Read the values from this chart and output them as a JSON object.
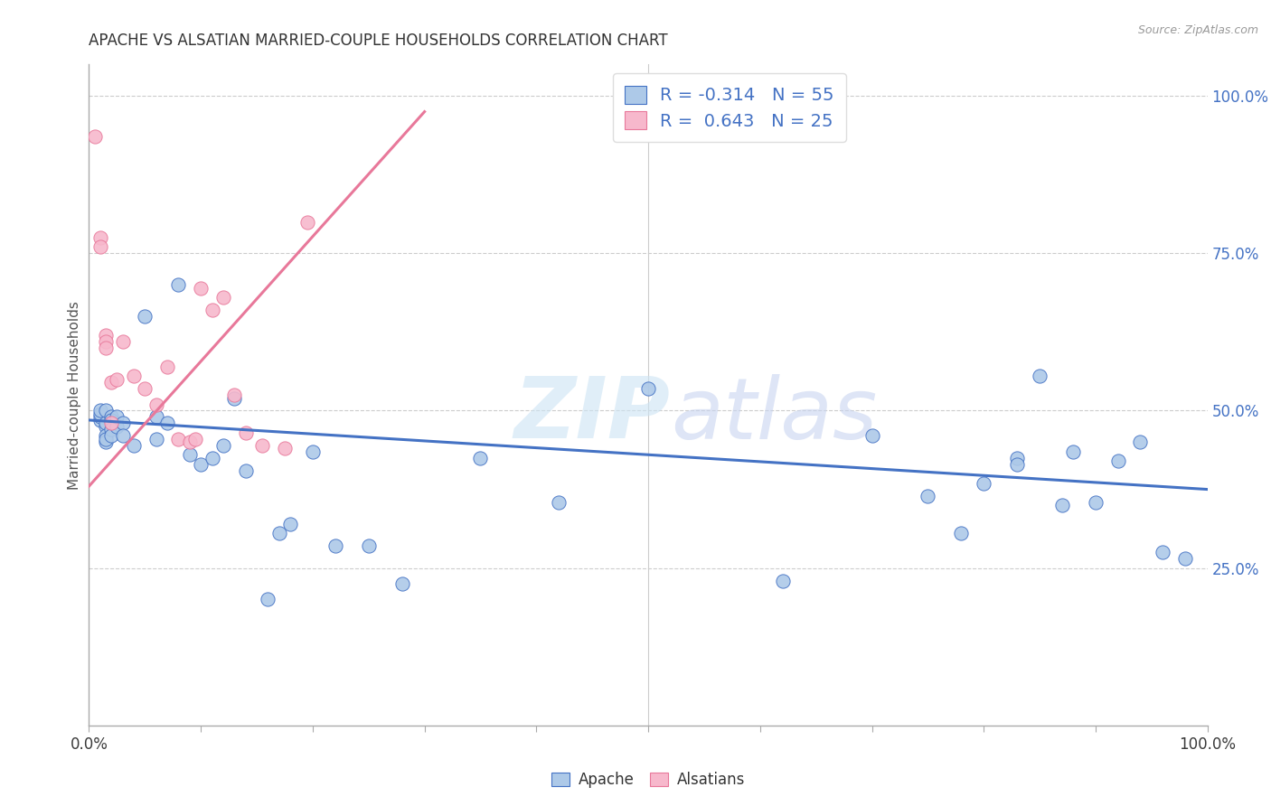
{
  "title": "APACHE VS ALSATIAN MARRIED-COUPLE HOUSEHOLDS CORRELATION CHART",
  "source": "Source: ZipAtlas.com",
  "ylabel": "Married-couple Households",
  "xlim": [
    0.0,
    1.0
  ],
  "ylim": [
    0.0,
    1.05
  ],
  "legend_apache_R": "-0.314",
  "legend_apache_N": "55",
  "legend_alsatian_R": "0.643",
  "legend_alsatian_N": "25",
  "apache_color": "#adc9e8",
  "alsatian_color": "#f7b8cc",
  "apache_line_color": "#4472c4",
  "alsatian_line_color": "#e8789a",
  "apache_points_x": [
    0.01,
    0.01,
    0.01,
    0.01,
    0.015,
    0.015,
    0.015,
    0.015,
    0.015,
    0.015,
    0.02,
    0.02,
    0.02,
    0.02,
    0.025,
    0.025,
    0.03,
    0.03,
    0.04,
    0.05,
    0.06,
    0.06,
    0.07,
    0.08,
    0.09,
    0.1,
    0.11,
    0.12,
    0.13,
    0.14,
    0.16,
    0.17,
    0.18,
    0.2,
    0.22,
    0.25,
    0.28,
    0.35,
    0.42,
    0.5,
    0.62,
    0.7,
    0.75,
    0.78,
    0.8,
    0.83,
    0.83,
    0.85,
    0.87,
    0.88,
    0.9,
    0.92,
    0.94,
    0.96,
    0.98
  ],
  "apache_points_y": [
    0.485,
    0.49,
    0.495,
    0.5,
    0.475,
    0.48,
    0.46,
    0.45,
    0.455,
    0.5,
    0.49,
    0.485,
    0.47,
    0.46,
    0.475,
    0.49,
    0.48,
    0.46,
    0.445,
    0.65,
    0.455,
    0.49,
    0.48,
    0.7,
    0.43,
    0.415,
    0.425,
    0.445,
    0.52,
    0.405,
    0.2,
    0.305,
    0.32,
    0.435,
    0.285,
    0.285,
    0.225,
    0.425,
    0.355,
    0.535,
    0.23,
    0.46,
    0.365,
    0.305,
    0.385,
    0.425,
    0.415,
    0.555,
    0.35,
    0.435,
    0.355,
    0.42,
    0.45,
    0.275,
    0.265
  ],
  "alsatian_points_x": [
    0.005,
    0.01,
    0.01,
    0.015,
    0.015,
    0.015,
    0.02,
    0.02,
    0.025,
    0.03,
    0.04,
    0.05,
    0.06,
    0.07,
    0.08,
    0.09,
    0.095,
    0.1,
    0.11,
    0.12,
    0.13,
    0.14,
    0.155,
    0.175,
    0.195
  ],
  "alsatian_points_y": [
    0.935,
    0.775,
    0.76,
    0.62,
    0.61,
    0.6,
    0.545,
    0.48,
    0.55,
    0.61,
    0.555,
    0.535,
    0.51,
    0.57,
    0.455,
    0.45,
    0.455,
    0.695,
    0.66,
    0.68,
    0.525,
    0.465,
    0.445,
    0.44,
    0.8
  ],
  "apache_line_x": [
    0.0,
    1.0
  ],
  "apache_line_y": [
    0.485,
    0.375
  ],
  "alsatian_line_x": [
    0.0,
    0.3
  ],
  "alsatian_line_y": [
    0.38,
    0.975
  ],
  "ytick_positions": [
    0.25,
    0.5,
    0.75,
    1.0
  ],
  "ytick_labels": [
    "25.0%",
    "50.0%",
    "75.0%",
    "100.0%"
  ],
  "xtick_positions": [
    0.0,
    0.5,
    1.0
  ],
  "xtick_labels": [
    "0.0%",
    "",
    "100.0%"
  ]
}
